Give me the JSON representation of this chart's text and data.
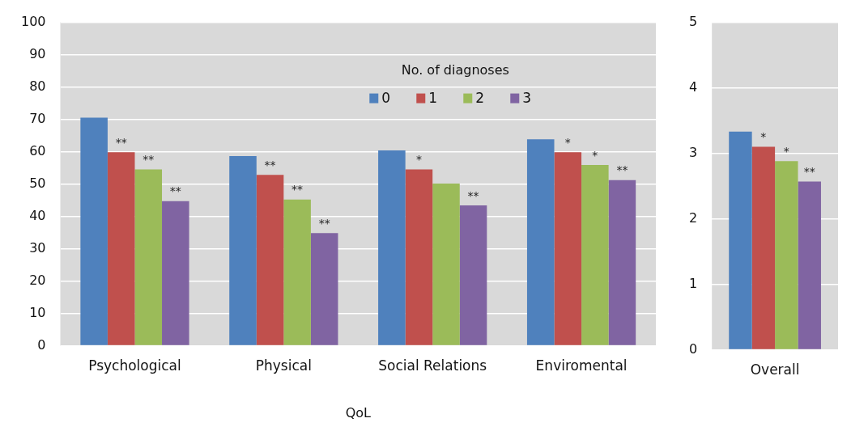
{
  "chart_data": [
    {
      "type": "bar",
      "xlabel": "QoL",
      "legend_title": "No. of diagnoses",
      "legend": "top",
      "grid": "y",
      "categories": [
        "Psychological",
        "Physical",
        "Social Relations",
        "Enviromental"
      ],
      "ylim": [
        0,
        100
      ],
      "yticks": [
        0,
        10,
        20,
        30,
        40,
        50,
        60,
        70,
        80,
        90,
        100
      ],
      "series": [
        {
          "name": "0",
          "color": "#4f81bd",
          "values": [
            70.5,
            58.6,
            60.4,
            63.8
          ]
        },
        {
          "name": "1",
          "color": "#c0504d",
          "values": [
            59.8,
            52.8,
            54.5,
            59.8
          ],
          "value_labels": [
            "**",
            "**",
            "*",
            "*"
          ]
        },
        {
          "name": "2",
          "color": "#9bbb59",
          "values": [
            54.5,
            45.2,
            50.1,
            55.9
          ],
          "value_labels": [
            "**",
            "**",
            null,
            "*"
          ]
        },
        {
          "name": "3",
          "color": "#8064a2",
          "values": [
            44.7,
            34.8,
            43.4,
            51.2
          ],
          "value_labels": [
            "**",
            "**",
            "**",
            "**"
          ]
        }
      ]
    },
    {
      "type": "bar",
      "grid": "y",
      "categories": [
        "Overall"
      ],
      "ylim": [
        0,
        5
      ],
      "yticks": [
        0,
        1,
        2,
        3,
        4,
        5
      ],
      "series": [
        {
          "color": "#4f81bd",
          "values": [
            3.33
          ]
        },
        {
          "color": "#c0504d",
          "values": [
            3.1
          ],
          "value_labels": [
            "*"
          ]
        },
        {
          "color": "#9bbb59",
          "values": [
            2.88
          ],
          "value_labels": [
            "*"
          ]
        },
        {
          "color": "#8064a2",
          "values": [
            2.57
          ],
          "value_labels": [
            "**"
          ]
        }
      ]
    }
  ]
}
